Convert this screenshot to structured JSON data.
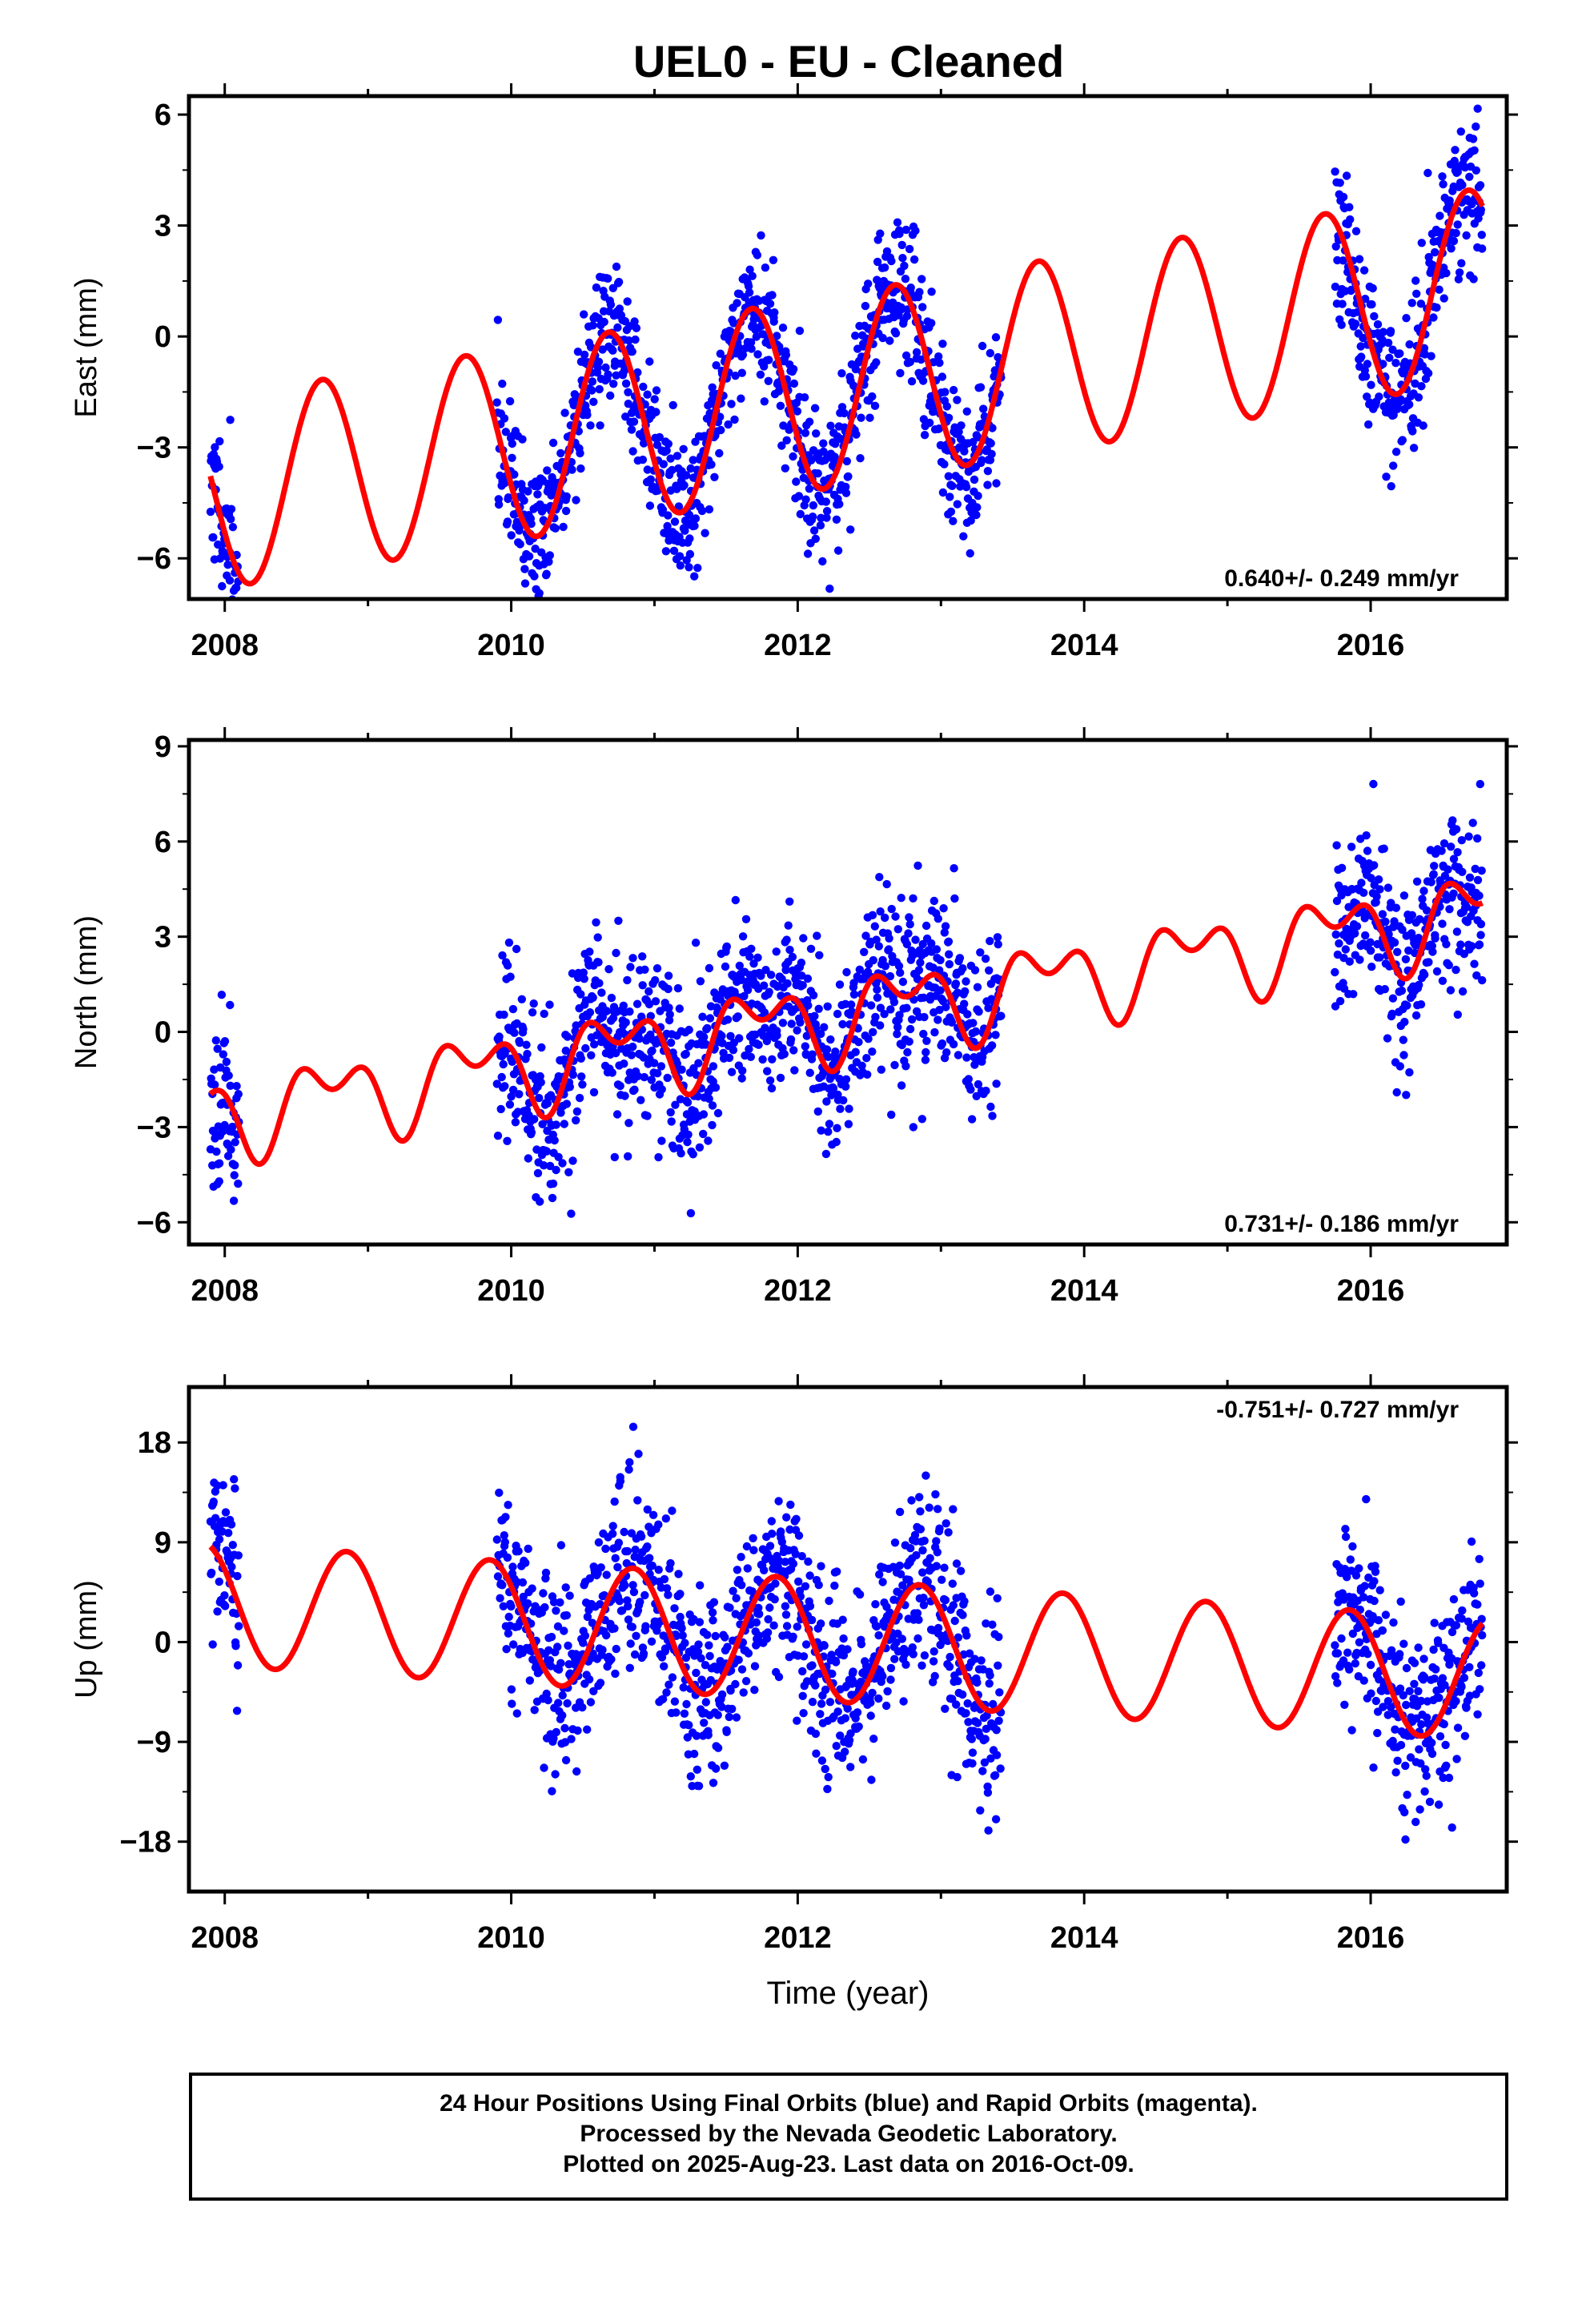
{
  "chart_title": "UEL0  - EU - Cleaned",
  "footer": {
    "line1": "24 Hour Positions Using Final Orbits (blue) and Rapid Orbits (magenta).",
    "line2": "Processed by the Nevada Geodetic Laboratory.",
    "line3": "Plotted on 2025-Aug-23. Last data on 2016-Oct-09."
  },
  "colors": {
    "points": "#0000ff",
    "model": "#ff0000",
    "frame": "#000000"
  },
  "chart_data": [
    {
      "type": "scatter",
      "panel": "east",
      "ylabel": "East (mm)",
      "xlabel": "",
      "xlim": [
        2007.75,
        2016.95
      ],
      "ylim": [
        -7.1,
        6.5
      ],
      "xticks": [
        2008,
        2010,
        2012,
        2014,
        2016
      ],
      "xtick_labels": [
        "2008",
        "2010",
        "2012",
        "2014",
        "2016"
      ],
      "yticks": [
        -6,
        -3,
        0,
        3,
        6
      ],
      "ytick_labels": [
        "−6",
        "−3",
        "0",
        "3",
        "6"
      ],
      "rate_text": "0.640+/- 0.249 mm/yr",
      "rate_position": "bottom-right",
      "model": {
        "c0": -4.2,
        "slope": 0.64,
        "t0": 2008.0,
        "amp": 2.6,
        "phase": 2008.43,
        "amp2": 0,
        "phase2": 2008.0
      },
      "data_segments": [
        [
          2007.9,
          2008.1
        ],
        [
          2009.9,
          2013.42
        ],
        [
          2015.75,
          2016.78
        ]
      ],
      "noise_sd": 1.0,
      "points_per_year": 290,
      "seed": 11
    },
    {
      "type": "scatter",
      "panel": "north",
      "ylabel": "North (mm)",
      "xlabel": "",
      "xlim": [
        2007.75,
        2016.95
      ],
      "ylim": [
        -6.7,
        9.2
      ],
      "xticks": [
        2008,
        2010,
        2012,
        2014,
        2016
      ],
      "xtick_labels": [
        "2008",
        "2010",
        "2012",
        "2014",
        "2016"
      ],
      "yticks": [
        -6,
        -3,
        0,
        3,
        6,
        9
      ],
      "ytick_labels": [
        "−6",
        "−3",
        "0",
        "3",
        "6",
        "9"
      ],
      "rate_text": "0.731+/- 0.186 mm/yr",
      "rate_position": "bottom-right",
      "model": {
        "c0": -2.6,
        "slope": 0.73,
        "t0": 2008.0,
        "amp": 1.0,
        "phase": 2008.48,
        "amp2": 0.75,
        "phase2": 2008.0
      },
      "data_segments": [
        [
          2007.9,
          2008.1
        ],
        [
          2009.9,
          2013.42
        ],
        [
          2015.75,
          2016.78
        ]
      ],
      "noise_sd": 1.35,
      "points_per_year": 290,
      "seed": 23
    },
    {
      "type": "scatter",
      "panel": "up",
      "ylabel": "Up (mm)",
      "xlabel": "Time (year)",
      "xlim": [
        2007.75,
        2016.95
      ],
      "ylim": [
        -22.5,
        23.0
      ],
      "xticks": [
        2008,
        2010,
        2012,
        2014,
        2016
      ],
      "xtick_labels": [
        "2008",
        "2010",
        "2012",
        "2014",
        "2016"
      ],
      "yticks": [
        -18,
        -9,
        0,
        9,
        18
      ],
      "ytick_labels": [
        "−18",
        "−9",
        "0",
        "9",
        "18"
      ],
      "rate_text": "-0.751+/- 0.727 mm/yr",
      "rate_position": "top-right",
      "model": {
        "c0": 3.3,
        "slope": -0.751,
        "t0": 2008.0,
        "amp": 5.5,
        "phase": 2008.6,
        "amp2": 0,
        "phase2": 2008.0
      },
      "data_segments": [
        [
          2007.9,
          2008.1
        ],
        [
          2009.9,
          2013.42
        ],
        [
          2015.75,
          2016.78
        ]
      ],
      "noise_sd": 4.2,
      "points_per_year": 290,
      "seed": 37
    }
  ]
}
